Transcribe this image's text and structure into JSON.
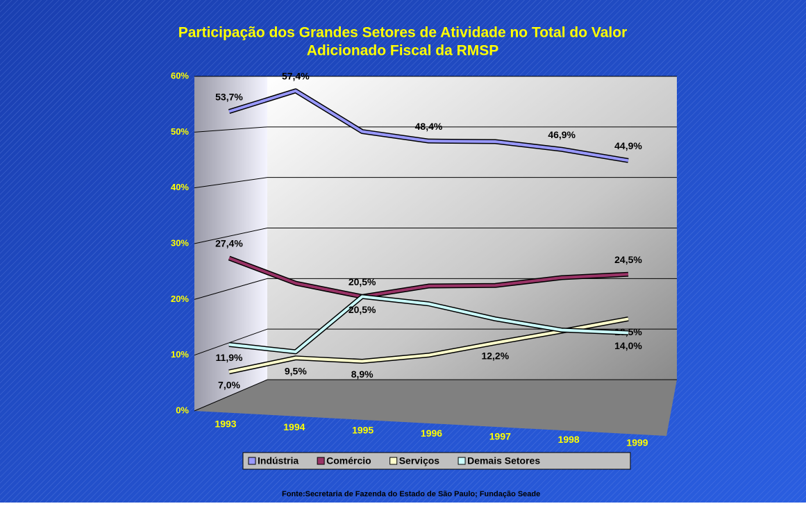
{
  "chart_data": {
    "type": "line",
    "title": [
      "Participação dos Grandes Setores de Atividade no Total do Valor",
      "Adicionado Fiscal da RMSP"
    ],
    "source": "Fonte:Secretaria de Fazenda do Estado de São Paulo; Fundação Seade",
    "categories": [
      "1993",
      "1994",
      "1995",
      "1996",
      "1997",
      "1998",
      "1999"
    ],
    "ylim": [
      0,
      60
    ],
    "yticks": [
      {
        "value": 0,
        "label": "0%"
      },
      {
        "value": 10,
        "label": "10%"
      },
      {
        "value": 20,
        "label": "20%"
      },
      {
        "value": 30,
        "label": "30%"
      },
      {
        "value": 40,
        "label": "40%"
      },
      {
        "value": 50,
        "label": "50%"
      },
      {
        "value": 60,
        "label": "60%"
      }
    ],
    "grid": true,
    "series": [
      {
        "name": "Indústria",
        "color": "#9999ff",
        "values": [
          53.7,
          57.4,
          50.1,
          48.4,
          48.3,
          46.9,
          44.9
        ],
        "value_labels": [
          "53,7%",
          "57,4%",
          null,
          "48,4%",
          null,
          "46,9%",
          "44,9%"
        ]
      },
      {
        "name": "Comércio",
        "color": "#993366",
        "values": [
          27.4,
          22.9,
          20.5,
          22.4,
          22.5,
          23.9,
          24.5
        ],
        "value_labels": [
          "27,4%",
          null,
          "20,5%",
          null,
          null,
          null,
          "24,5%"
        ]
      },
      {
        "name": "Serviços",
        "color": "#ffffcc",
        "values": [
          7.0,
          9.5,
          8.9,
          10.0,
          12.2,
          14.3,
          16.5
        ],
        "value_labels": [
          "7,0%",
          "9,5%",
          "8,9%",
          null,
          "12,2%",
          null,
          "16,5%"
        ]
      },
      {
        "name": "Demais Setores",
        "color": "#ccffff",
        "values": [
          11.9,
          10.6,
          20.5,
          19.2,
          16.5,
          14.5,
          14.0
        ],
        "value_labels": [
          "11,9%",
          null,
          "20,5%",
          null,
          null,
          null,
          "14,0%"
        ]
      }
    ]
  }
}
